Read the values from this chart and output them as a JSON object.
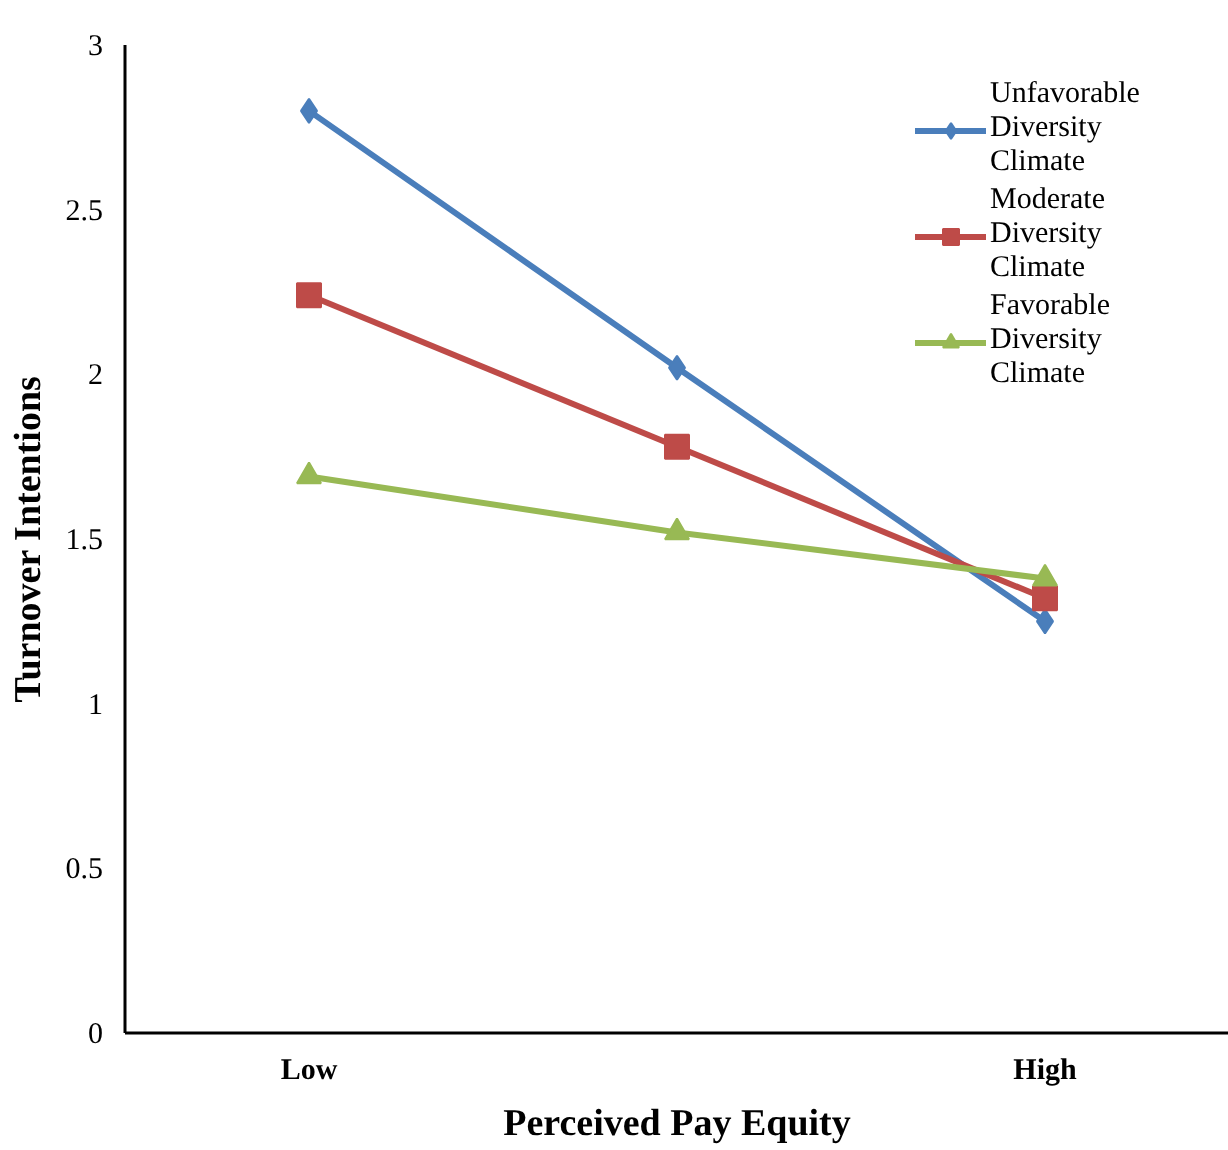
{
  "chart_data": {
    "type": "line",
    "xlabel": "Perceived Pay Equity",
    "ylabel": "Turnover Intentions",
    "categories": [
      "Low",
      null,
      "High"
    ],
    "series": [
      {
        "name": "Unfavorable Diversity Climate",
        "color": "#4a7ebb",
        "values": [
          2.8,
          2.02,
          1.25
        ],
        "marker": "diamond"
      },
      {
        "name": "Moderate Diversity Climate",
        "color": "#be4b48",
        "values": [
          2.24,
          1.78,
          1.32
        ],
        "marker": "square"
      },
      {
        "name": "Favorable Diversity Climate",
        "color": "#98b954",
        "values": [
          1.69,
          1.52,
          1.38
        ],
        "marker": "triangle"
      }
    ],
    "ylim": [
      0,
      3
    ],
    "yticks": [
      0,
      0.5,
      1,
      1.5,
      2,
      2.5,
      3
    ],
    "grid": false,
    "legend": "top right",
    "line_style": "solid"
  }
}
